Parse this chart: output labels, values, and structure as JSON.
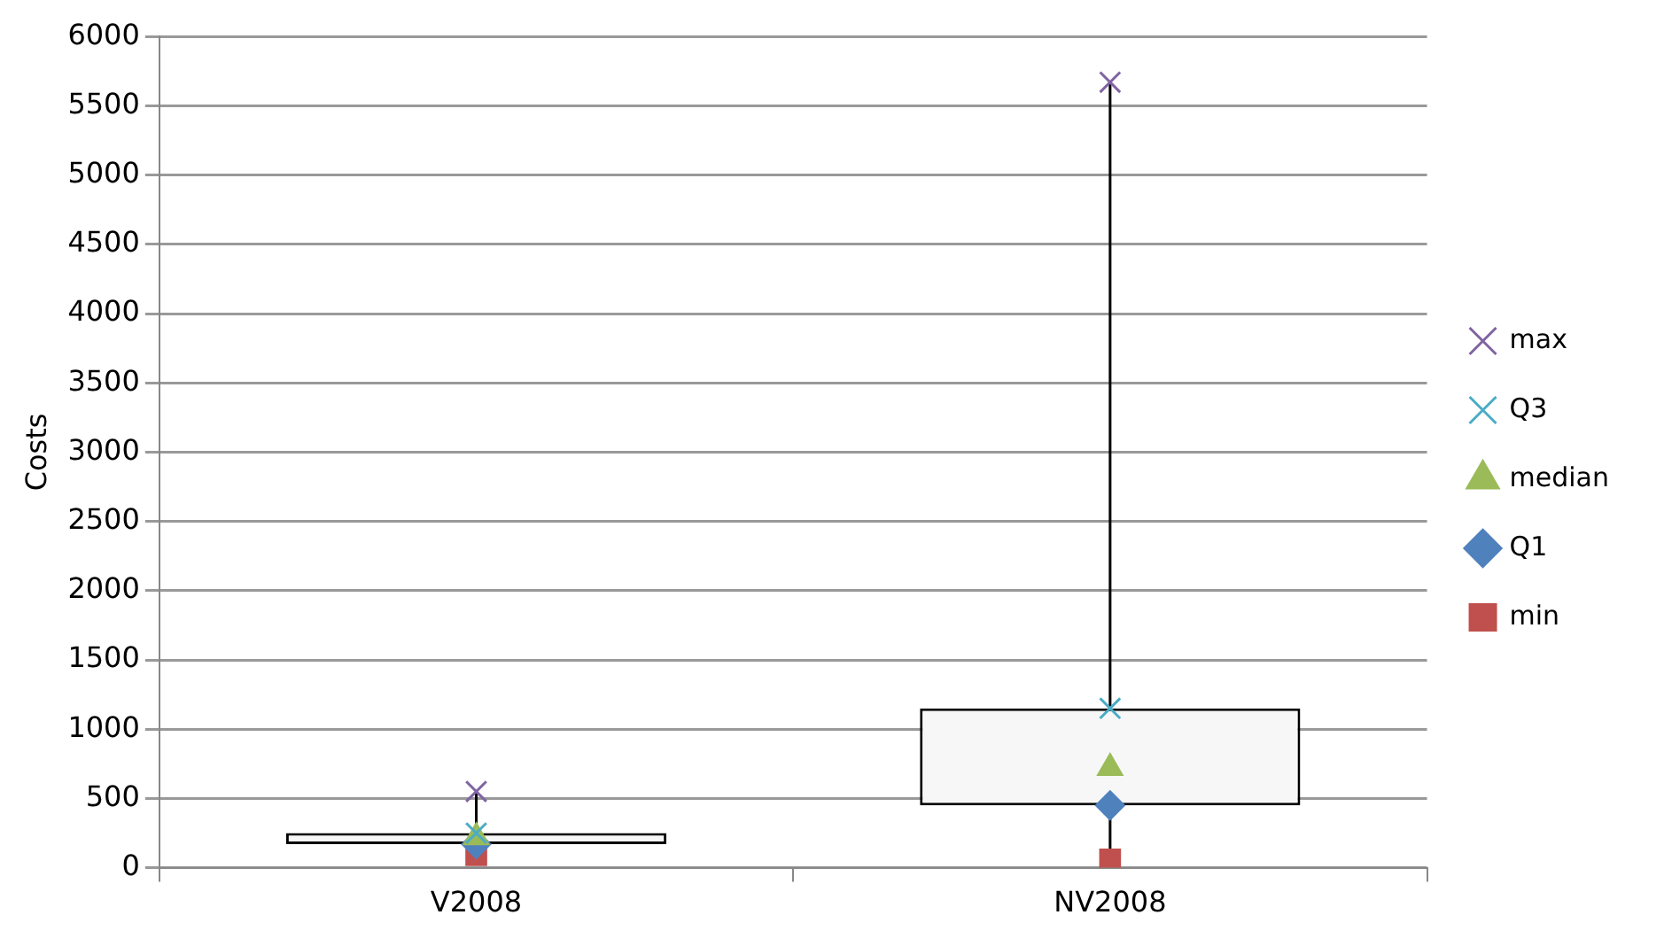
{
  "chart_data": {
    "type": "scatter",
    "ylabel": "Costs",
    "categories": [
      "V2008",
      "NV2008"
    ],
    "series": [
      {
        "type": "bar",
        "color": "#f7f7f7",
        "base": [
          170,
          450
        ],
        "values": [
          80,
          700
        ]
      },
      {
        "name": "max",
        "marker": "cross",
        "color": "#8064a2",
        "x": [
          "V2008",
          "NV2008"
        ],
        "values": [
          550,
          5670
        ]
      },
      {
        "name": "Q3",
        "marker": "cross",
        "color": "#4bacc6",
        "x": [
          "V2008",
          "NV2008"
        ],
        "values": [
          250,
          1150
        ]
      },
      {
        "name": "median",
        "marker": "triangle",
        "color": "#9bbb59",
        "x": [
          "V2008",
          "NV2008"
        ],
        "values": [
          220,
          720
        ]
      },
      {
        "name": "Q1",
        "marker": "diamond",
        "color": "#4f81bd",
        "x": [
          "V2008",
          "NV2008"
        ],
        "values": [
          170,
          450
        ]
      },
      {
        "name": "min",
        "marker": "square",
        "color": "#c0504d",
        "x": [
          "V2008",
          "NV2008"
        ],
        "values": [
          90,
          60
        ]
      }
    ],
    "ylim": [
      0,
      6000
    ],
    "yticks": [
      0,
      500,
      1000,
      1500,
      2000,
      2500,
      3000,
      3500,
      4000,
      4500,
      5000,
      5500,
      6000
    ],
    "grid": "y",
    "legend": "right"
  }
}
